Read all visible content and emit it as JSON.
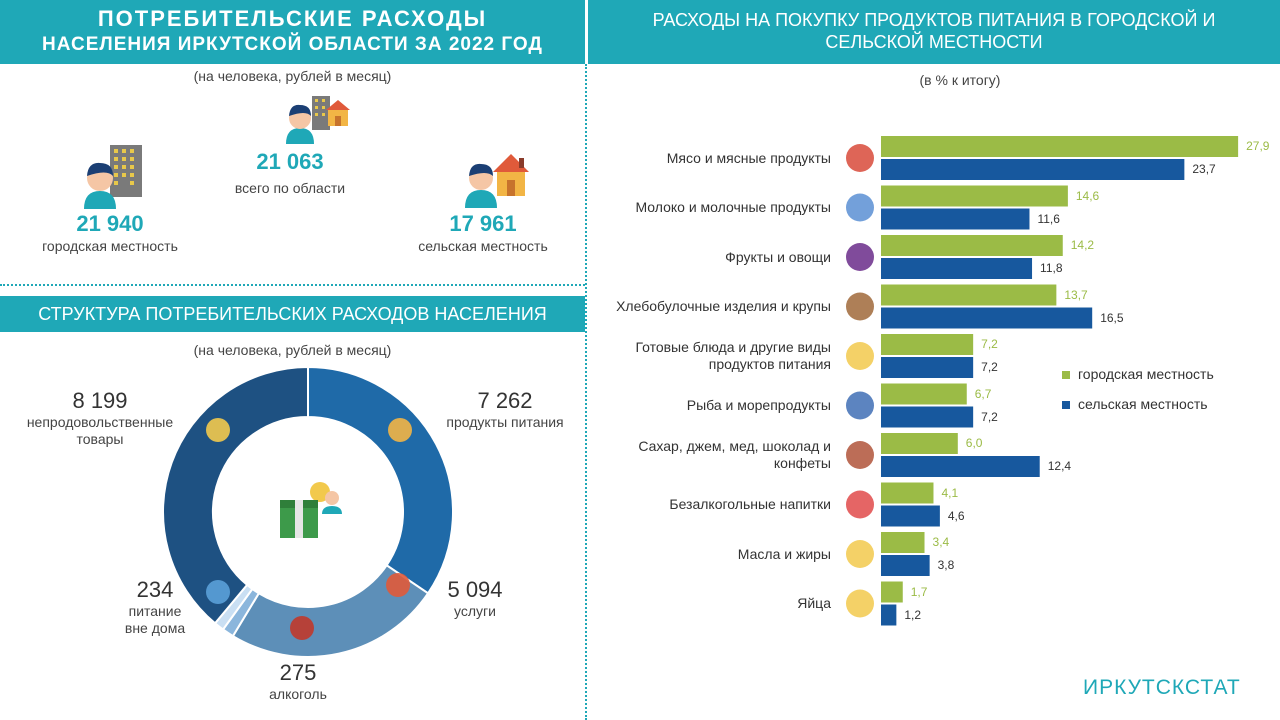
{
  "left_header": {
    "line1": "ПОТРЕБИТЕЛЬСКИЕ РАСХОДЫ",
    "line2": "НАСЕЛЕНИЯ ИРКУТСКОЙ ОБЛАСТИ ЗА 2022 ГОД"
  },
  "per_person_note": "(на человека, рублей в месяц)",
  "totals": {
    "region": {
      "value": "21 063",
      "label": "всего по области"
    },
    "urban": {
      "value": "21 940",
      "label": "городская местность"
    },
    "rural": {
      "value": "17 961",
      "label": "сельская местность"
    }
  },
  "structure_header": "СТРУКТУРА ПОТРЕБИТЕЛЬСКИХ РАСХОДОВ НАСЕЛЕНИЯ",
  "structure_note": "(на человека, рублей в месяц)",
  "right_header": "РАСХОДЫ НА ПОКУПКУ ПРОДУКТОВ ПИТАНИЯ В ГОРОДСКОЙ И СЕЛЬСКОЙ МЕСТНОСТИ",
  "right_note": "(в % к итогу)",
  "brand": "ИРКУТСКСТАТ",
  "colors": {
    "teal": "#1fa8b7",
    "urban": "#9bbb46",
    "rural": "#17589e",
    "donut": [
      "#1f6aa8",
      "#5d8fb8",
      "#8bb6dc",
      "#c9dff3",
      "#1e5182"
    ]
  },
  "chart_data": [
    {
      "type": "pie",
      "variant": "donut",
      "categories": [
        "продукты питания",
        "услуги",
        "алкоголь",
        "питание вне дома",
        "непродовольственные товары"
      ],
      "values": [
        7262,
        5094,
        275,
        234,
        8199
      ],
      "value_labels": [
        "7 262",
        "5 094",
        "275",
        "234",
        "8 199"
      ],
      "label_lines": [
        [
          "продукты питания"
        ],
        [
          "услуги"
        ],
        [
          "алкоголь"
        ],
        [
          "питание",
          "вне дома"
        ],
        [
          "непродовольственные",
          "товары"
        ]
      ],
      "icons": [
        "groceries-icon",
        "services-icon",
        "alcohol-icon",
        "dining-icon",
        "goods-icon"
      ]
    },
    {
      "type": "bar",
      "orientation": "horizontal",
      "categories": [
        [
          "Мясо и мясные продукты"
        ],
        [
          "Молоко и молочные продукты"
        ],
        [
          "Фрукты и овощи"
        ],
        [
          "Хлебобулочные изделия и крупы"
        ],
        [
          "Готовые блюда и другие виды",
          "продуктов питания"
        ],
        [
          "Рыба и морепродукты"
        ],
        [
          "Сахар, джем, мед, шоколад и",
          "конфеты"
        ],
        [
          "Безалкогольные напитки"
        ],
        [
          "Масла и жиры"
        ],
        [
          "Яйца"
        ]
      ],
      "series": [
        {
          "name": "городская местность",
          "values": [
            27.9,
            14.6,
            14.2,
            13.7,
            7.2,
            6.7,
            6.0,
            4.1,
            3.4,
            1.7
          ],
          "labels": [
            "27,9",
            "14,6",
            "14,2",
            "13,7",
            "7,2",
            "6,7",
            "6,0",
            "4,1",
            "3,4",
            "1,7"
          ]
        },
        {
          "name": "сельская местность",
          "values": [
            23.7,
            11.6,
            11.8,
            16.5,
            7.2,
            7.2,
            12.4,
            4.6,
            3.8,
            1.2
          ],
          "labels": [
            "23,7",
            "11,6",
            "11,8",
            "16,5",
            "7,2",
            "7,2",
            "12,4",
            "4,6",
            "3,8",
            "1,2"
          ]
        }
      ],
      "icons": [
        "meat-icon",
        "milk-icon",
        "vegetables-icon",
        "bread-icon",
        "dish-icon",
        "fish-icon",
        "cake-icon",
        "soda-icon",
        "butter-icon",
        "eggs-icon"
      ],
      "xlim": [
        0,
        30
      ],
      "legend": "right"
    }
  ]
}
